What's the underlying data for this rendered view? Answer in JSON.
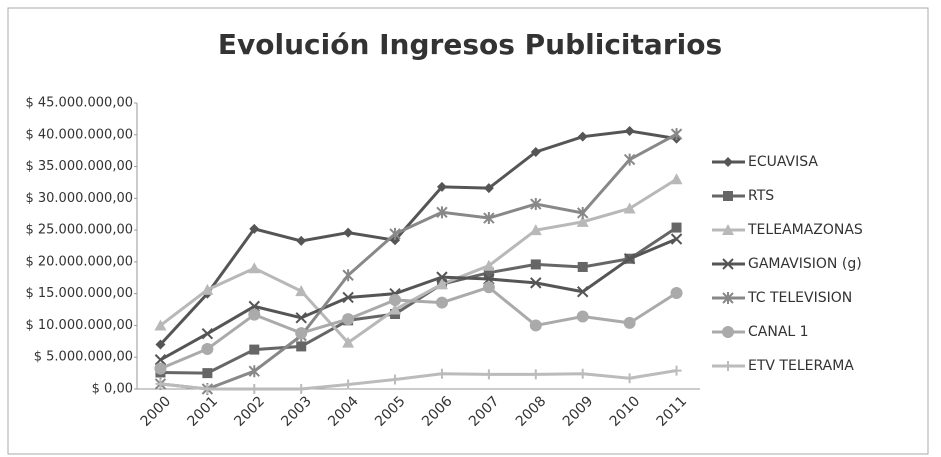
{
  "chart_data": {
    "type": "line",
    "title": "Evolución Ingresos Publicitarios",
    "categories": [
      "2000",
      "2001",
      "2002",
      "2003",
      "2004",
      "2005",
      "2006",
      "2007",
      "2008",
      "2009",
      "2010",
      "2011"
    ],
    "ylim": [
      0,
      45000000
    ],
    "yticks": [
      {
        "value": 0,
        "label": "$ 0,00"
      },
      {
        "value": 5000000,
        "label": "$ 5.000.000,00"
      },
      {
        "value": 10000000,
        "label": "$ 10.000.000,00"
      },
      {
        "value": 15000000,
        "label": "$ 15.000.000,00"
      },
      {
        "value": 20000000,
        "label": "$ 20.000.000,00"
      },
      {
        "value": 25000000,
        "label": "$ 25.000.000,00"
      },
      {
        "value": 30000000,
        "label": "$ 30.000.000,00"
      },
      {
        "value": 35000000,
        "label": "$ 35.000.000,00"
      },
      {
        "value": 40000000,
        "label": "$ 40.000.000,00"
      },
      {
        "value": 45000000,
        "label": "$ 45.000.000,00"
      }
    ],
    "grid": false,
    "legend": "right",
    "series": [
      {
        "name": "ECUAVISA",
        "color": "#555555",
        "marker": "diamond",
        "values": [
          7000000,
          15000000,
          25200000,
          23300000,
          24600000,
          23400000,
          31800000,
          31600000,
          37300000,
          39700000,
          40600000,
          39400000
        ]
      },
      {
        "name": "RTS",
        "color": "#666666",
        "marker": "square",
        "values": [
          2600000,
          2500000,
          6200000,
          6700000,
          10800000,
          11800000,
          16500000,
          18300000,
          19600000,
          19200000,
          20500000,
          25400000
        ]
      },
      {
        "name": "TELEAMAZONAS",
        "color": "#b8b8b8",
        "marker": "triangle",
        "values": [
          10000000,
          15600000,
          19000000,
          15400000,
          7300000,
          12500000,
          16500000,
          19400000,
          25000000,
          26300000,
          28400000,
          33000000
        ]
      },
      {
        "name": "GAMAVISION (g)",
        "color": "#555555",
        "marker": "x",
        "values": [
          4600000,
          8700000,
          13000000,
          11200000,
          14400000,
          15000000,
          17600000,
          17300000,
          16700000,
          15300000,
          20500000,
          23600000
        ]
      },
      {
        "name": "TC TELEVISION",
        "color": "#888888",
        "marker": "star",
        "values": [
          800000,
          0,
          2800000,
          8400000,
          17900000,
          24400000,
          27800000,
          26900000,
          29100000,
          27700000,
          36100000,
          40100000
        ]
      },
      {
        "name": "CANAL 1",
        "color": "#aaaaaa",
        "marker": "circle",
        "values": [
          3200000,
          6300000,
          11700000,
          8800000,
          11000000,
          14000000,
          13600000,
          16000000,
          10000000,
          11400000,
          10400000,
          15100000
        ]
      },
      {
        "name": "ETV TELERAMA",
        "color": "#bbbbbb",
        "marker": "plus",
        "values": [
          800000,
          0,
          0,
          0,
          700000,
          1500000,
          2400000,
          2300000,
          2300000,
          2400000,
          1700000,
          2900000
        ]
      }
    ]
  }
}
